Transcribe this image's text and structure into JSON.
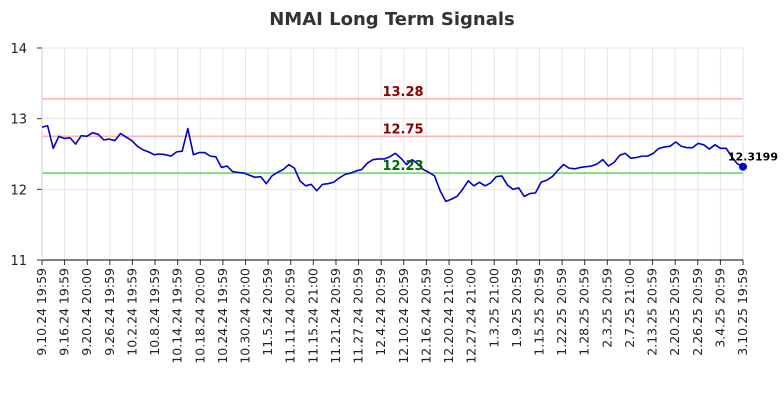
{
  "chart_data": {
    "type": "line",
    "title": "NMAI Long Term Signals",
    "xlabel": "",
    "ylabel": "",
    "ylim": [
      11,
      14
    ],
    "y_ticks": [
      "11",
      "12",
      "13",
      "14"
    ],
    "grid": true,
    "x_tick_labels": [
      "9.10.24 19:59",
      "9.16.24 19:59",
      "9.20.24 20:00",
      "9.26.24 19:59",
      "10.2.24 19:59",
      "10.8.24 19:59",
      "10.14.24 19:59",
      "10.18.24 20:00",
      "10.24.24 19:59",
      "10.30.24 20:00",
      "11.5.24 20:59",
      "11.11.24 20:59",
      "11.15.24 21:00",
      "11.21.24 20:59",
      "11.27.24 20:59",
      "12.4.24 20:59",
      "12.10.24 20:59",
      "12.16.24 20:59",
      "12.20.24 21:00",
      "12.27.24 21:00",
      "1.3.25 21:00",
      "1.9.25 20:59",
      "1.15.25 20:59",
      "1.22.25 20:59",
      "1.28.25 20:59",
      "2.3.25 20:59",
      "2.7.25 21:00",
      "2.13.25 20:59",
      "2.20.25 20:59",
      "2.26.25 20:59",
      "3.4.25 20:59",
      "3.10.25 19:59"
    ],
    "series": [
      {
        "color": "#0000cc",
        "values": [
          12.88,
          12.9,
          12.58,
          12.75,
          12.72,
          12.73,
          12.64,
          12.76,
          12.75,
          12.8,
          12.78,
          12.7,
          12.71,
          12.69,
          12.79,
          12.74,
          12.69,
          12.61,
          12.56,
          12.53,
          12.49,
          12.5,
          12.49,
          12.47,
          12.53,
          12.54,
          12.86,
          12.49,
          12.52,
          12.52,
          12.47,
          12.46,
          12.31,
          12.33,
          12.25,
          12.24,
          12.23,
          12.2,
          12.17,
          12.18,
          12.08,
          12.19,
          12.24,
          12.28,
          12.35,
          12.3,
          12.12,
          12.05,
          12.07,
          11.98,
          12.07,
          12.08,
          12.1,
          12.16,
          12.21,
          12.23,
          12.26,
          12.28,
          12.37,
          12.42,
          12.43,
          12.43,
          12.46,
          12.51,
          12.44,
          12.35,
          12.42,
          12.36,
          12.28,
          12.24,
          12.19,
          11.98,
          11.83,
          11.86,
          11.9,
          12.0,
          12.12,
          12.05,
          12.1,
          12.05,
          12.09,
          12.18,
          12.19,
          12.06,
          12.0,
          12.02,
          11.9,
          11.94,
          11.95,
          12.1,
          12.13,
          12.18,
          12.27,
          12.35,
          12.3,
          12.29,
          12.31,
          12.32,
          12.33,
          12.36,
          12.42,
          12.33,
          12.38,
          12.48,
          12.51,
          12.44,
          12.45,
          12.47,
          12.47,
          12.51,
          12.58,
          12.6,
          12.61,
          12.67,
          12.61,
          12.59,
          12.59,
          12.65,
          12.63,
          12.57,
          12.63,
          12.58,
          12.58,
          12.46,
          12.36,
          12.32
        ]
      }
    ],
    "reference_lines": [
      {
        "value": 13.28,
        "label": "13.28",
        "line_color": "#ffb3b3",
        "label_color": "#8b0000"
      },
      {
        "value": 12.75,
        "label": "12.75",
        "line_color": "#ffb3b3",
        "label_color": "#8b0000"
      },
      {
        "value": 12.23,
        "label": "12.23",
        "line_color": "#66dd66",
        "label_color": "#006400"
      }
    ],
    "last_value": {
      "value": 12.3199,
      "label": "12.3199",
      "color": "#0000cc"
    }
  }
}
